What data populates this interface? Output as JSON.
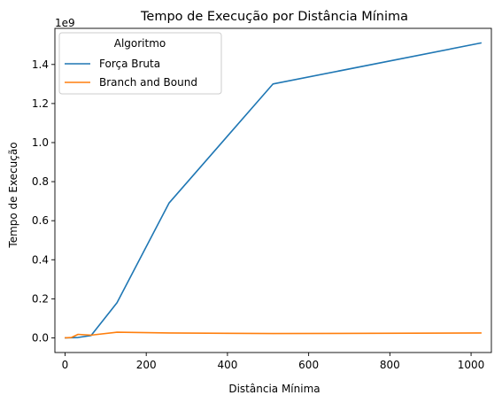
{
  "chart_data": {
    "type": "line",
    "title": "Tempo de Execução por Distância Mínima",
    "xlabel": "Distância Mínima",
    "ylabel": "Tempo de Execução",
    "y_offset_label": "1e9",
    "xlim": [
      -25,
      1050
    ],
    "ylim": [
      -0.075,
      1.585
    ],
    "x_ticks": [
      0,
      200,
      400,
      600,
      800,
      1000
    ],
    "x_tick_labels": [
      "0",
      "200",
      "400",
      "600",
      "800",
      "1000"
    ],
    "y_ticks": [
      0.0,
      0.2,
      0.4,
      0.6,
      0.8,
      1.0,
      1.2,
      1.4
    ],
    "y_tick_labels": [
      "0.0",
      "0.2",
      "0.4",
      "0.6",
      "0.8",
      "1.0",
      "1.2",
      "1.4"
    ],
    "grid": false,
    "legend": {
      "title": "Algoritmo",
      "position": "top-left"
    },
    "series": [
      {
        "name": "Força Bruta",
        "color": "#1f77b4",
        "x": [
          1,
          16,
          32,
          64,
          128,
          256,
          512,
          1024
        ],
        "y": [
          0.0,
          0.0005,
          0.002,
          0.012,
          0.18,
          0.69,
          1.3,
          1.51
        ]
      },
      {
        "name": "Branch and Bound",
        "color": "#ff7f0e",
        "x": [
          1,
          16,
          32,
          64,
          128,
          256,
          512,
          1024
        ],
        "y": [
          0.0,
          0.002,
          0.018,
          0.014,
          0.029,
          0.025,
          0.022,
          0.025
        ]
      }
    ]
  }
}
